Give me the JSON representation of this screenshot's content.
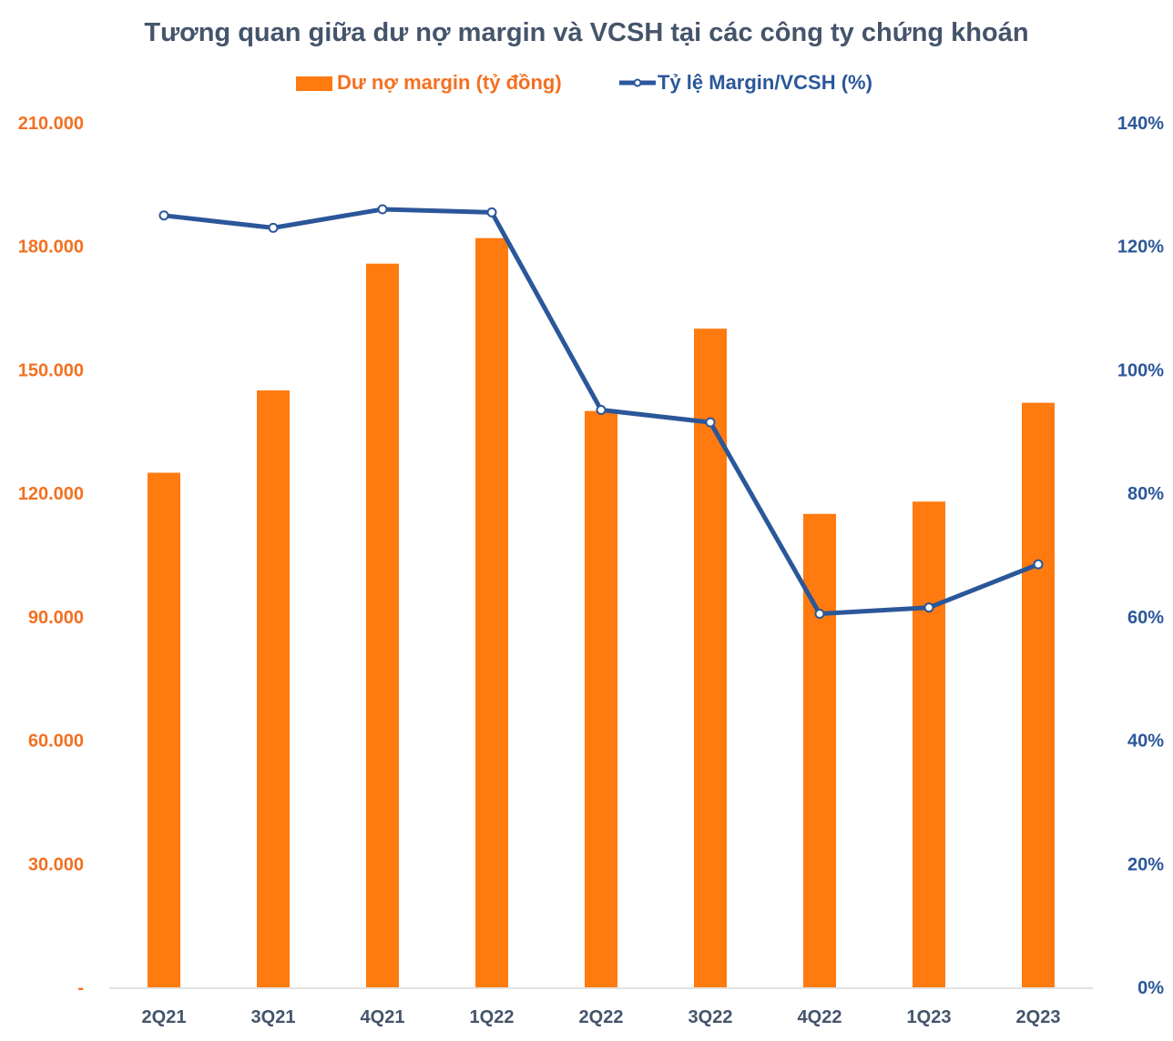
{
  "chart_data": {
    "type": "bar",
    "title": "Tương quan giữa dư nợ margin và VCSH tại các công ty chứng khoán",
    "categories": [
      "2Q21",
      "3Q21",
      "4Q21",
      "1Q22",
      "2Q22",
      "3Q22",
      "4Q22",
      "1Q23",
      "2Q23"
    ],
    "series": [
      {
        "name": "Dư nợ margin (tỷ đồng)",
        "type": "bar",
        "axis": "left",
        "color": "#FF7A0F",
        "values": [
          125000,
          145000,
          175800,
          182000,
          140000,
          160000,
          115000,
          118000,
          142000
        ]
      },
      {
        "name": "Tỷ lệ Margin/VCSH (%)",
        "type": "line",
        "axis": "right",
        "color": "#2B579A",
        "values": [
          125,
          123,
          126,
          125.5,
          93.5,
          91.5,
          60.5,
          61.5,
          68.5
        ]
      }
    ],
    "y_left": {
      "ylim": [
        0,
        210000
      ],
      "ticks": [
        0,
        30000,
        60000,
        90000,
        120000,
        150000,
        180000,
        210000
      ],
      "tick_labels": [
        "-",
        "30.000",
        "60.000",
        "90.000",
        "120.000",
        "150.000",
        "180.000",
        "210.000"
      ],
      "color": "#F37021"
    },
    "y_right": {
      "ylim": [
        0,
        140
      ],
      "ticks": [
        0,
        20,
        40,
        60,
        80,
        100,
        120,
        140
      ],
      "tick_labels": [
        "0%",
        "20%",
        "40%",
        "60%",
        "80%",
        "100%",
        "120%",
        "140%"
      ],
      "color": "#2B579A"
    },
    "xlabel": "",
    "ylabel": "",
    "legend_position": "top-center",
    "grid": false,
    "title_color": "#44546A",
    "axis_line_color": "#D9D9D9",
    "x_tick_color": "#44546A"
  }
}
